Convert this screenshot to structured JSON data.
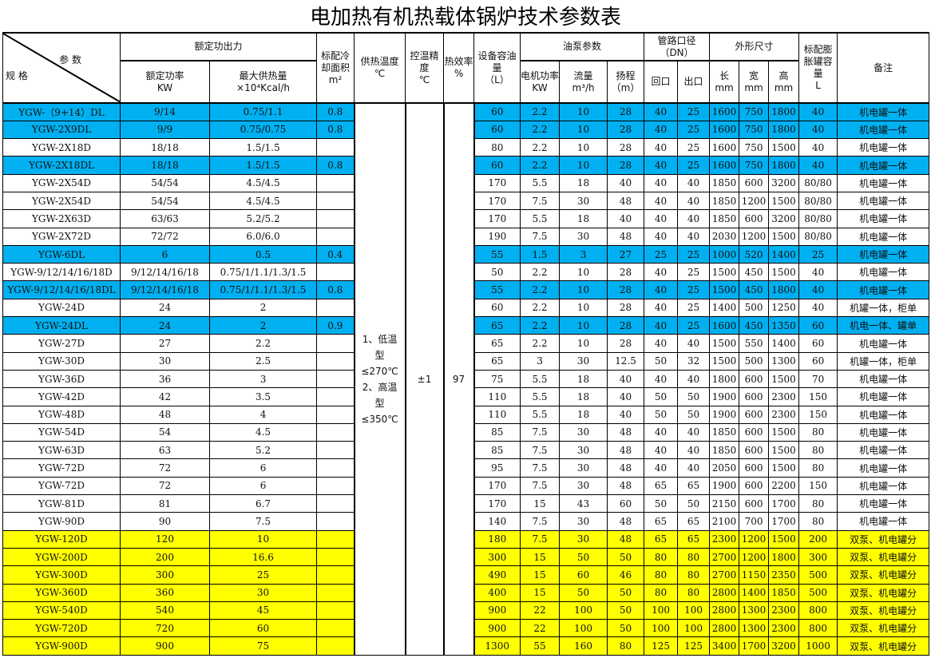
{
  "title": "电加热有机热载体锅炉技术参数表",
  "colors": {
    "blue": "#00B0F0",
    "yellow": "#FFFF00"
  },
  "header": {
    "params": "参 数",
    "spec": "规 格",
    "rated_output": "额定功出力",
    "rated_power": "额定功率",
    "rated_power_unit": "KW",
    "max_heat": "最大供热量",
    "max_heat_unit": "×10⁴Kcal/h",
    "cooling_area": "标配冷却面积",
    "cooling_area_unit": "m²",
    "supply_temp": "供热温度",
    "supply_temp_unit": "℃",
    "precision": "控温精度",
    "precision_unit": "℃",
    "efficiency": "热效率",
    "efficiency_unit": "%",
    "oil_capacity": "设备容油量",
    "oil_capacity_unit": "（L）",
    "pump": "油泵参数",
    "motor_power": "电机功率",
    "motor_power_unit": "KW",
    "flow": "流量",
    "flow_unit": "m³/h",
    "head": "扬程",
    "head_unit": "（m）",
    "pipe": "管路口径（DN）",
    "return": "回口",
    "outlet": "出口",
    "dims": "外形尺寸",
    "length": "长",
    "width": "宽",
    "height": "高",
    "mm": "mm",
    "tank": "标配膨胀罐容量",
    "tank_unit": "L",
    "note": "备注"
  },
  "merged": {
    "supply_temp": "1、低温型≤270℃ 2、高温型≤350℃",
    "precision": "±1",
    "efficiency": "97"
  },
  "rows": [
    {
      "color": "blue",
      "cells": [
        "YGW-（9+14）DL",
        "9/14",
        "0.75/1.1",
        "0.8",
        "60",
        "2.2",
        "10",
        "28",
        "40",
        "25",
        "1600",
        "750",
        "1800",
        "40",
        "机电罐一体"
      ]
    },
    {
      "color": "blue",
      "cells": [
        "YGW-2X9DL",
        "9/9",
        "0.75/0.75",
        "0.8",
        "60",
        "2.2",
        "10",
        "28",
        "40",
        "25",
        "1600",
        "750",
        "1800",
        "40",
        "机电罐一体"
      ]
    },
    {
      "color": "white",
      "cells": [
        "YGW-2X18D",
        "18/18",
        "1.5/1.5",
        "",
        "80",
        "2.2",
        "10",
        "28",
        "40",
        "25",
        "1600",
        "750",
        "1500",
        "40",
        "机电罐一体"
      ]
    },
    {
      "color": "blue",
      "cells": [
        "YGW-2X18DL",
        "18/18",
        "1.5/1.5",
        "0.8",
        "60",
        "2.2",
        "10",
        "28",
        "40",
        "25",
        "1600",
        "750",
        "1800",
        "40",
        "机电罐一体"
      ]
    },
    {
      "color": "white",
      "cells": [
        "YGW-2X54D",
        "54/54",
        "4.5/4.5",
        "",
        "170",
        "5.5",
        "18",
        "40",
        "40",
        "40",
        "1850",
        "600",
        "3200",
        "80/80",
        "机电罐一体"
      ]
    },
    {
      "color": "white",
      "cells": [
        "YGW-2X54D",
        "54/54",
        "4.5/4.5",
        "",
        "170",
        "7.5",
        "30",
        "48",
        "40",
        "40",
        "1850",
        "1200",
        "1500",
        "80/80",
        "机电罐一体"
      ]
    },
    {
      "color": "white",
      "cells": [
        "YGW-2X63D",
        "63/63",
        "5.2/5.2",
        "",
        "170",
        "5.5",
        "18",
        "40",
        "40",
        "40",
        "1850",
        "600",
        "3200",
        "80/80",
        "机电罐一体"
      ]
    },
    {
      "color": "white",
      "cells": [
        "YGW-2X72D",
        "72/72",
        "6.0/6.0",
        "",
        "190",
        "7.5",
        "30",
        "48",
        "40",
        "40",
        "2030",
        "1200",
        "1500",
        "80/80",
        "机电罐一体"
      ]
    },
    {
      "color": "blue",
      "cells": [
        "YGW-6DL",
        "6",
        "0.5",
        "0.4",
        "55",
        "1.5",
        "3",
        "27",
        "25",
        "25",
        "1000",
        "520",
        "1400",
        "25",
        "机电罐一体"
      ]
    },
    {
      "color": "white",
      "cells": [
        "YGW-9/12/14/16/18D",
        "9/12/14/16/18",
        "0.75/1/1.1/1.3/1.5",
        "",
        "50",
        "2.2",
        "10",
        "28",
        "40",
        "25",
        "1500",
        "450",
        "1500",
        "40",
        "机电罐一体"
      ]
    },
    {
      "color": "blue",
      "cells": [
        "YGW-9/12/14/16/18DL",
        "9/12/14/16/18",
        "0.75/1/1.1/1.3/1.5",
        "0.8",
        "55",
        "2.2",
        "10",
        "28",
        "40",
        "25",
        "1500",
        "450",
        "1800",
        "40",
        "机电罐一体"
      ]
    },
    {
      "color": "white",
      "cells": [
        "YGW-24D",
        "24",
        "2",
        "",
        "60",
        "2.2",
        "10",
        "28",
        "40",
        "25",
        "1400",
        "500",
        "1250",
        "40",
        "机罐一体，柜单"
      ]
    },
    {
      "color": "blue",
      "cells": [
        "YGW-24DL",
        "24",
        "2",
        "0.9",
        "65",
        "2.2",
        "10",
        "28",
        "40",
        "25",
        "1600",
        "450",
        "1350",
        "60",
        "机电一体、罐单"
      ]
    },
    {
      "color": "white",
      "cells": [
        "YGW-27D",
        "27",
        "2.2",
        "",
        "65",
        "2.2",
        "10",
        "28",
        "40",
        "40",
        "1500",
        "550",
        "1400",
        "60",
        "机电罐一体"
      ]
    },
    {
      "color": "white",
      "cells": [
        "YGW-30D",
        "30",
        "2.5",
        "",
        "65",
        "3",
        "30",
        "12.5",
        "50",
        "32",
        "1500",
        "500",
        "1300",
        "60",
        "机罐一体，柜单"
      ]
    },
    {
      "color": "white",
      "cells": [
        "YGW-36D",
        "36",
        "3",
        "",
        "75",
        "5.5",
        "18",
        "40",
        "40",
        "40",
        "1800",
        "600",
        "1500",
        "70",
        "机电罐一体"
      ]
    },
    {
      "color": "white",
      "cells": [
        "YGW-42D",
        "42",
        "3.5",
        "",
        "110",
        "5.5",
        "18",
        "40",
        "50",
        "50",
        "1900",
        "600",
        "2300",
        "150",
        "机电罐一体"
      ]
    },
    {
      "color": "white",
      "cells": [
        "YGW-48D",
        "48",
        "4",
        "",
        "110",
        "5.5",
        "18",
        "40",
        "50",
        "50",
        "1900",
        "600",
        "2300",
        "150",
        "机电罐一体"
      ]
    },
    {
      "color": "white",
      "cells": [
        "YGW-54D",
        "54",
        "4.5",
        "",
        "85",
        "7.5",
        "30",
        "48",
        "40",
        "40",
        "1850",
        "600",
        "1500",
        "80",
        "机电罐一体"
      ]
    },
    {
      "color": "white",
      "cells": [
        "YGW-63D",
        "63",
        "5.2",
        "",
        "85",
        "7.5",
        "30",
        "48",
        "40",
        "40",
        "1850",
        "600",
        "1500",
        "80",
        "机电罐一体"
      ]
    },
    {
      "color": "white",
      "cells": [
        "YGW-72D",
        "72",
        "6",
        "",
        "95",
        "7.5",
        "30",
        "48",
        "40",
        "40",
        "2050",
        "600",
        "1500",
        "80",
        "机电罐一体"
      ]
    },
    {
      "color": "white",
      "cells": [
        "YGW-72D",
        "72",
        "6",
        "",
        "170",
        "7.5",
        "30",
        "48",
        "65",
        "65",
        "1900",
        "600",
        "2200",
        "150",
        "机电罐一体"
      ]
    },
    {
      "color": "white",
      "cells": [
        "YGW-81D",
        "81",
        "6.7",
        "",
        "170",
        "15",
        "43",
        "60",
        "50",
        "50",
        "2150",
        "600",
        "1700",
        "80",
        "机电罐一体"
      ]
    },
    {
      "color": "white",
      "cells": [
        "YGW-90D",
        "90",
        "7.5",
        "",
        "140",
        "7.5",
        "30",
        "48",
        "65",
        "65",
        "2100",
        "700",
        "1700",
        "80",
        "机电罐一体"
      ]
    },
    {
      "color": "yellow",
      "cells": [
        "YGW-120D",
        "120",
        "10",
        "",
        "180",
        "7.5",
        "30",
        "48",
        "65",
        "65",
        "2300",
        "1200",
        "1500",
        "200",
        "双泵、机电罐分"
      ]
    },
    {
      "color": "yellow",
      "cells": [
        "YGW-200D",
        "200",
        "16.6",
        "",
        "300",
        "15",
        "50",
        "50",
        "80",
        "80",
        "2700",
        "1200",
        "1800",
        "300",
        "双泵、机电罐分"
      ]
    },
    {
      "color": "yellow",
      "cells": [
        "YGW-300D",
        "300",
        "25",
        "",
        "490",
        "15",
        "60",
        "46",
        "80",
        "80",
        "2700",
        "1150",
        "2350",
        "500",
        "双泵、机电罐分"
      ]
    },
    {
      "color": "yellow",
      "cells": [
        "YGW-360D",
        "360",
        "30",
        "",
        "400",
        "15",
        "50",
        "50",
        "80",
        "80",
        "2800",
        "1400",
        "1850",
        "500",
        "双泵、机电罐分"
      ]
    },
    {
      "color": "yellow",
      "cells": [
        "YGW-540D",
        "540",
        "45",
        "",
        "900",
        "22",
        "100",
        "50",
        "100",
        "100",
        "2800",
        "1300",
        "2300",
        "800",
        "双泵、机电罐分"
      ]
    },
    {
      "color": "yellow",
      "cells": [
        "YGW-720D",
        "720",
        "60",
        "",
        "900",
        "22",
        "100",
        "50",
        "100",
        "100",
        "2800",
        "1300",
        "2300",
        "800",
        "双泵、机电罐分"
      ]
    },
    {
      "color": "yellow",
      "cells": [
        "YGW-900D",
        "900",
        "75",
        "",
        "1300",
        "55",
        "160",
        "80",
        "125",
        "125",
        "3400",
        "1700",
        "3200",
        "1000",
        "双泵、机电罐分"
      ]
    }
  ]
}
